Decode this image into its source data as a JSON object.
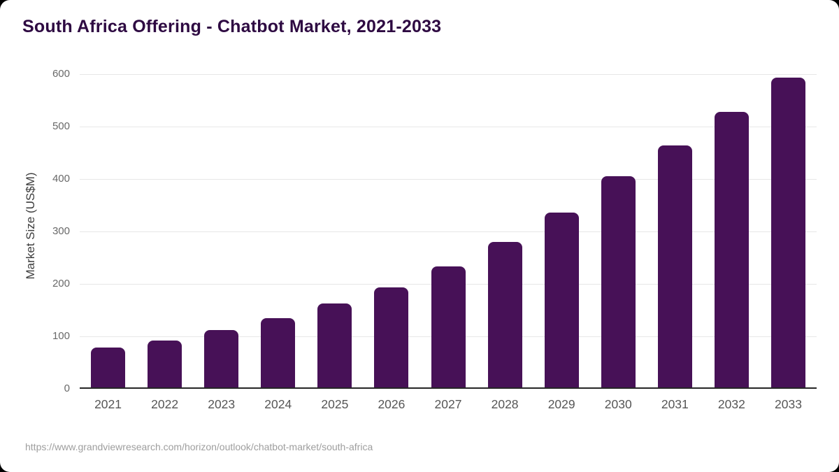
{
  "page": {
    "background": "#000000",
    "card_background": "#ffffff"
  },
  "title": "South Africa Offering - Chatbot Market, 2021-2033",
  "source_url": "https://www.grandviewresearch.com/horizon/outlook/chatbot-market/south-africa",
  "chart_data": {
    "type": "bar",
    "title": "South Africa Offering - Chatbot Market, 2021-2033",
    "categories": [
      "2021",
      "2022",
      "2023",
      "2024",
      "2025",
      "2026",
      "2027",
      "2028",
      "2029",
      "2030",
      "2031",
      "2032",
      "2033"
    ],
    "values": [
      77,
      90,
      110,
      132,
      161,
      192,
      232,
      278,
      335,
      404,
      464,
      528,
      593
    ],
    "xlabel": "",
    "ylabel": "Market Size (US$M)",
    "ylim": [
      0,
      600
    ],
    "yticks": [
      0,
      100,
      200,
      300,
      400,
      500,
      600
    ],
    "grid": true,
    "legend": null,
    "bar_color": "#471157",
    "gridline_color": "#e7e7e7",
    "axis_line_color": "#262626",
    "title_color": "#2e0a42",
    "tick_label_color": "#696969",
    "x_label_color": "#565656",
    "source_color": "#9e9e9e"
  }
}
